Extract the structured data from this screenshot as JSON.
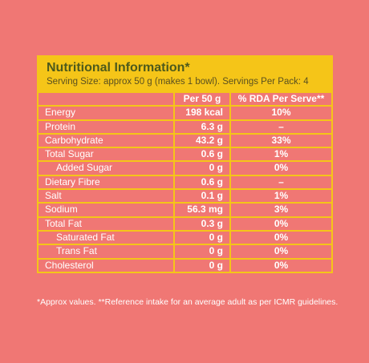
{
  "header": {
    "title": "Nutritional Information*",
    "subtitle": "Serving Size: approx 50 g (makes 1 bowl). Servings Per Pack: 4"
  },
  "table": {
    "columns": [
      "",
      "Per 50 g",
      "% RDA Per Serve**"
    ],
    "rows": [
      {
        "nutrient": "Energy",
        "per50": "198 kcal",
        "rda": "10%",
        "sub": false
      },
      {
        "nutrient": "Protein",
        "per50": "6.3 g",
        "rda": "–",
        "sub": false
      },
      {
        "nutrient": "Carbohydrate",
        "per50": "43.2 g",
        "rda": "33%",
        "sub": false
      },
      {
        "nutrient": "Total Sugar",
        "per50": "0.6 g",
        "rda": "1%",
        "sub": false
      },
      {
        "nutrient": "Added Sugar",
        "per50": "0 g",
        "rda": "0%",
        "sub": true
      },
      {
        "nutrient": "Dietary Fibre",
        "per50": "0.6 g",
        "rda": "–",
        "sub": false
      },
      {
        "nutrient": "Salt",
        "per50": "0.1 g",
        "rda": "1%",
        "sub": false
      },
      {
        "nutrient": "Sodium",
        "per50": "56.3 mg",
        "rda": "3%",
        "sub": false
      },
      {
        "nutrient": "Total Fat",
        "per50": "0.3 g",
        "rda": "0%",
        "sub": false
      },
      {
        "nutrient": "Saturated Fat",
        "per50": "0 g",
        "rda": "0%",
        "sub": true
      },
      {
        "nutrient": "Trans Fat",
        "per50": "0 g",
        "rda": "0%",
        "sub": true
      },
      {
        "nutrient": "Cholesterol",
        "per50": "0 g",
        "rda": "0%",
        "sub": false
      }
    ]
  },
  "footnote": "*Approx values. **Reference intake for an average adult as per ICMR guidelines.",
  "colors": {
    "background": "#f07774",
    "accent": "#f5c518",
    "title": "#4d5a1c",
    "text": "#ffffff"
  }
}
